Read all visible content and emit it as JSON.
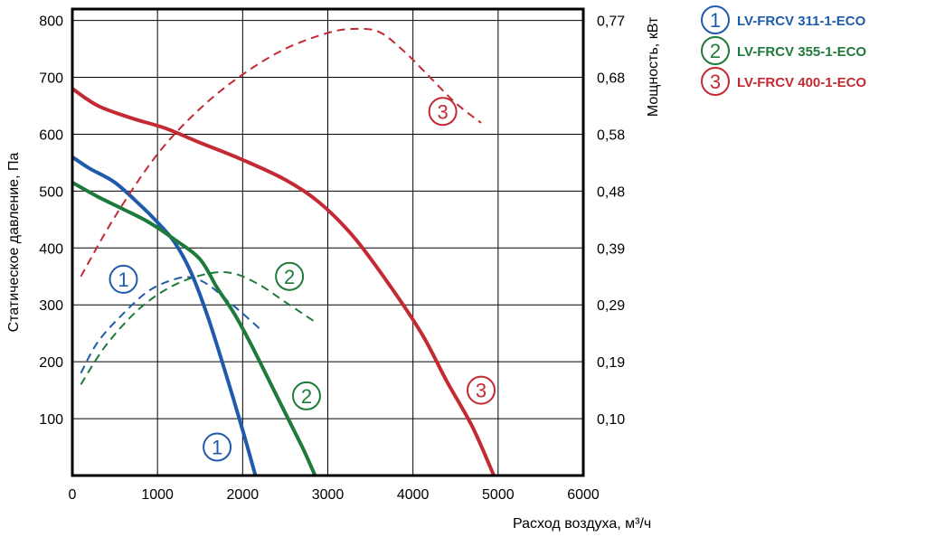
{
  "chart_data": {
    "type": "line",
    "xlabel": "Расход воздуха, м³/ч",
    "ylabel_left": "Статическое давление, Па",
    "ylabel_right": "Мощность, кВт",
    "xlim": [
      0,
      6000
    ],
    "ylim_left": [
      0,
      820
    ],
    "x_ticks": [
      "0",
      "1000",
      "2000",
      "3000",
      "4000",
      "5000",
      "6000"
    ],
    "y_ticks_left": [
      "100",
      "200",
      "300",
      "400",
      "500",
      "600",
      "700",
      "800"
    ],
    "y_ticks_right": [
      "0,10",
      "0,19",
      "0,29",
      "0,39",
      "0,48",
      "0,58",
      "0,68",
      "0,77"
    ],
    "grid": true,
    "legend_position": "right",
    "series": [
      {
        "name": "LV-FRCV 311-1-ECO",
        "marker": "1",
        "color": "#1f5bab",
        "pressure": [
          [
            0,
            560
          ],
          [
            200,
            540
          ],
          [
            500,
            515
          ],
          [
            800,
            475
          ],
          [
            1000,
            445
          ],
          [
            1200,
            410
          ],
          [
            1400,
            355
          ],
          [
            1600,
            275
          ],
          [
            1800,
            180
          ],
          [
            2000,
            80
          ],
          [
            2150,
            0
          ]
        ],
        "power_in_pressure_units": [
          [
            100,
            180
          ],
          [
            300,
            235
          ],
          [
            600,
            285
          ],
          [
            900,
            325
          ],
          [
            1200,
            345
          ],
          [
            1400,
            348
          ],
          [
            1600,
            335
          ],
          [
            1800,
            310
          ],
          [
            2000,
            285
          ],
          [
            2200,
            258
          ]
        ]
      },
      {
        "name": "LV-FRCV 355-1-ECO",
        "marker": "2",
        "color": "#1e7a3a",
        "pressure": [
          [
            0,
            515
          ],
          [
            300,
            490
          ],
          [
            600,
            468
          ],
          [
            900,
            445
          ],
          [
            1200,
            415
          ],
          [
            1500,
            380
          ],
          [
            1700,
            330
          ],
          [
            1900,
            285
          ],
          [
            2100,
            230
          ],
          [
            2400,
            140
          ],
          [
            2700,
            50
          ],
          [
            2850,
            0
          ]
        ],
        "power_in_pressure_units": [
          [
            100,
            160
          ],
          [
            400,
            230
          ],
          [
            800,
            295
          ],
          [
            1200,
            335
          ],
          [
            1600,
            355
          ],
          [
            1900,
            355
          ],
          [
            2200,
            335
          ],
          [
            2500,
            305
          ],
          [
            2850,
            270
          ]
        ]
      },
      {
        "name": "LV-FRCV 400-1-ECO",
        "marker": "3",
        "color": "#c32a33",
        "pressure": [
          [
            0,
            680
          ],
          [
            300,
            650
          ],
          [
            700,
            628
          ],
          [
            1100,
            610
          ],
          [
            1500,
            585
          ],
          [
            2000,
            555
          ],
          [
            2500,
            520
          ],
          [
            2900,
            480
          ],
          [
            3300,
            420
          ],
          [
            3700,
            340
          ],
          [
            4100,
            250
          ],
          [
            4400,
            165
          ],
          [
            4700,
            85
          ],
          [
            4950,
            0
          ]
        ],
        "power_in_pressure_units": [
          [
            100,
            350
          ],
          [
            500,
            455
          ],
          [
            1000,
            565
          ],
          [
            1500,
            645
          ],
          [
            2000,
            705
          ],
          [
            2500,
            750
          ],
          [
            3000,
            778
          ],
          [
            3300,
            785
          ],
          [
            3600,
            780
          ],
          [
            3900,
            745
          ],
          [
            4200,
            700
          ],
          [
            4500,
            655
          ],
          [
            4800,
            620
          ]
        ]
      }
    ]
  }
}
